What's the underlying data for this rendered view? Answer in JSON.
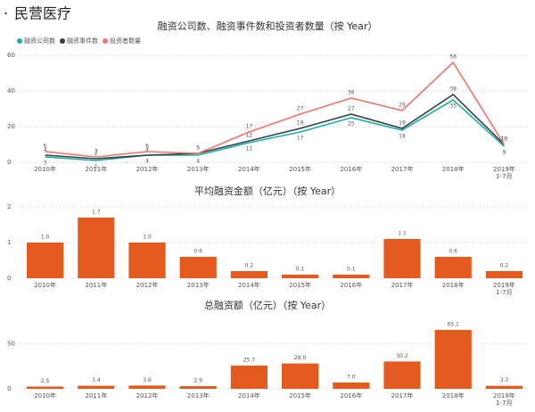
{
  "header": {
    "title": "民营医疗"
  },
  "chart_data": [
    {
      "type": "line",
      "title": "融资公司数、融资事件数和投资者数量（按 Year）",
      "categories": [
        "2010年",
        "2011年",
        "2012年",
        "2013年",
        "2014年",
        "2015年",
        "2016年",
        "2017年",
        "2018年",
        "2019年 1-7月"
      ],
      "series": [
        {
          "name": "融资公司数",
          "color": "#1aaf9e",
          "values": [
            3,
            1,
            4,
            4,
            11,
            17,
            25,
            18,
            35,
            9
          ]
        },
        {
          "name": "融资事件数",
          "color": "#333e48",
          "values": [
            4,
            2,
            4,
            5,
            12,
            19,
            27,
            19,
            38,
            10
          ]
        },
        {
          "name": "投资者数量",
          "color": "#f0736a",
          "values": [
            6,
            3,
            6,
            5,
            17,
            27,
            36,
            29,
            56,
            10
          ]
        }
      ],
      "ylim": [
        0,
        60
      ],
      "yticks": [
        0,
        20,
        40,
        60
      ],
      "grid": true
    },
    {
      "type": "bar",
      "title": "平均融资金额（亿元）（按 Year）",
      "categories": [
        "2010年",
        "2011年",
        "2012年",
        "2013年",
        "2014年",
        "2015年",
        "2016年",
        "2017年",
        "2018年",
        "2019年 1-7月"
      ],
      "values": [
        1.0,
        1.7,
        1.0,
        0.6,
        0.2,
        0.1,
        0.1,
        1.1,
        0.6,
        0.2
      ],
      "value_labels": [
        "1.0",
        "1.7",
        "1.0",
        "0.6",
        "0.2",
        "0.1",
        "0.1",
        "1.1",
        "0.6",
        "0.2"
      ],
      "color": "#e35a1e",
      "ylim": [
        0,
        2
      ],
      "yticks": [
        0,
        1,
        2
      ],
      "grid": true
    },
    {
      "type": "bar",
      "title": "总融资额（亿元）（按 Year）",
      "categories": [
        "2010年",
        "2011年",
        "2012年",
        "2013年",
        "2014年",
        "2015年",
        "2016年",
        "2017年",
        "2018年",
        "2019年 1-7月"
      ],
      "values": [
        2.5,
        3.4,
        3.6,
        2.9,
        25.7,
        28.0,
        7.0,
        30.2,
        65.1,
        3.3
      ],
      "value_labels": [
        "2.5",
        "3.4",
        "3.6",
        "2.9",
        "25.7",
        "28.0",
        "7.0",
        "30.2",
        "65.1",
        "3.3"
      ],
      "color": "#e35a1e",
      "ylim": [
        0,
        70
      ],
      "yticks": [
        0,
        50
      ],
      "grid": true
    }
  ]
}
